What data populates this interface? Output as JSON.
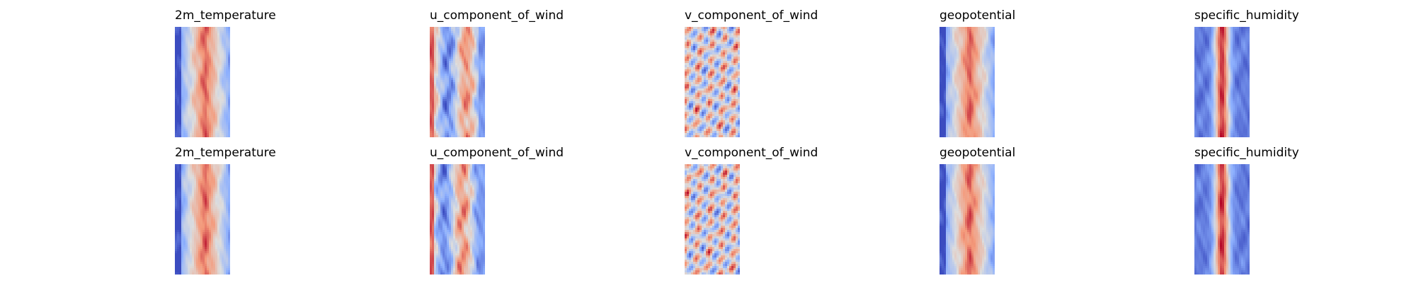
{
  "chart_data": [
    {
      "type": "heatmap",
      "title": "2m_temperature",
      "colormap": "coolwarm",
      "row": 1,
      "col": 1,
      "pattern": "band"
    },
    {
      "type": "heatmap",
      "title": "u_component_of_wind",
      "colormap": "coolwarm",
      "row": 1,
      "col": 2,
      "pattern": "stripes"
    },
    {
      "type": "heatmap",
      "title": "v_component_of_wind",
      "colormap": "coolwarm",
      "row": 1,
      "col": 3,
      "pattern": "swirl"
    },
    {
      "type": "heatmap",
      "title": "geopotential",
      "colormap": "coolwarm",
      "row": 1,
      "col": 4,
      "pattern": "band"
    },
    {
      "type": "heatmap",
      "title": "specific_humidity",
      "colormap": "coolwarm",
      "row": 1,
      "col": 5,
      "pattern": "spine"
    },
    {
      "type": "heatmap",
      "title": "2m_temperature",
      "colormap": "coolwarm",
      "row": 2,
      "col": 1,
      "pattern": "band"
    },
    {
      "type": "heatmap",
      "title": "u_component_of_wind",
      "colormap": "coolwarm",
      "row": 2,
      "col": 2,
      "pattern": "stripes"
    },
    {
      "type": "heatmap",
      "title": "v_component_of_wind",
      "colormap": "coolwarm",
      "row": 2,
      "col": 3,
      "pattern": "swirl"
    },
    {
      "type": "heatmap",
      "title": "geopotential",
      "colormap": "coolwarm",
      "row": 2,
      "col": 4,
      "pattern": "band"
    },
    {
      "type": "heatmap",
      "title": "specific_humidity",
      "colormap": "coolwarm",
      "row": 2,
      "col": 5,
      "pattern": "spine"
    }
  ],
  "colors": {
    "cold": "#3b4cc0",
    "neutral": "#dddddd",
    "warm": "#b40426"
  }
}
